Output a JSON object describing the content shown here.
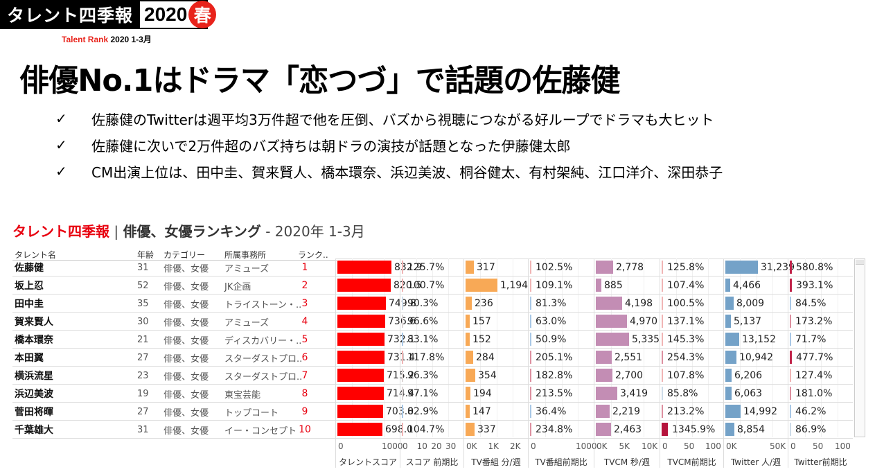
{
  "logo": {
    "title": "タレント四季報",
    "year": "2020",
    "season": "春",
    "sub_red": "Talent Rank",
    "sub_black": "2020 1-3月"
  },
  "headline": "俳優No.1はドラマ「恋つづ」で話題の佐藤健",
  "bullets": [
    {
      "icon": "check-icon",
      "mark": "✓",
      "text": "佐藤健のTwitterは週平均3万件超で他を圧倒、バズから視聴につながる好ループでドラマも大ヒット"
    },
    {
      "icon": "check-icon",
      "mark": "✓",
      "text": "佐藤健に次いで2万件超のバズ持ちは朝ドラの演技が話題となった伊藤健太郎"
    },
    {
      "icon": "check-icon",
      "mark": "✓",
      "text": "CM出演上位は、田中圭、賀来賢人、橋本環奈、浜辺美波、桐谷健太、有村架純、江口洋介、深田恭子"
    }
  ],
  "dashboard": {
    "title_red": "タレント四季報",
    "title_sep": " | ",
    "title_bold": "俳優、女優ランキング",
    "title_light": " - 2020年 1-3月",
    "columns": {
      "name": "タレント名",
      "age": "年齢",
      "category": "カテゴリー",
      "agency": "所属事務所",
      "rank": "ランク.."
    },
    "rows": [
      {
        "name": "佐藤健",
        "age": "31",
        "category": "俳優、女優",
        "agency": "アミューズ",
        "rank": "1"
      },
      {
        "name": "坂上忍",
        "age": "52",
        "category": "俳優、女優",
        "agency": "JK企画",
        "rank": "2"
      },
      {
        "name": "田中圭",
        "age": "35",
        "category": "俳優、女優",
        "agency": "トライストーン・..",
        "rank": "3"
      },
      {
        "name": "賀来賢人",
        "age": "30",
        "category": "俳優、女優",
        "agency": "アミューズ",
        "rank": "4"
      },
      {
        "name": "橋本環奈",
        "age": "21",
        "category": "俳優、女優",
        "agency": "ディスカバリー・..",
        "rank": "5"
      },
      {
        "name": "本田翼",
        "age": "27",
        "category": "俳優、女優",
        "agency": "スターダストプロ..",
        "rank": "6"
      },
      {
        "name": "横浜流星",
        "age": "23",
        "category": "俳優、女優",
        "agency": "スターダストプロ..",
        "rank": "7"
      },
      {
        "name": "浜辺美波",
        "age": "19",
        "category": "俳優、女優",
        "agency": "東宝芸能",
        "rank": "8"
      },
      {
        "name": "菅田将暉",
        "age": "27",
        "category": "俳優、女優",
        "agency": "トップコート",
        "rank": "9"
      },
      {
        "name": "千葉雄大",
        "age": "31",
        "category": "俳優、女優",
        "agency": "イー・コンセプト",
        "rank": "10"
      }
    ]
  },
  "chart_data": {
    "type": "bar",
    "title": "タレント四季報 | 俳優、女優ランキング - 2020年 1-3月",
    "categories": [
      "佐藤健",
      "坂上忍",
      "田中圭",
      "賀来賢人",
      "橋本環奈",
      "本田翼",
      "横浜流星",
      "浜辺美波",
      "菅田将暉",
      "千葉雄大"
    ],
    "series": [
      {
        "name": "タレントスコア",
        "color": "#ff0000",
        "axis_max": 1500,
        "ticks": [
          "0",
          "1000"
        ],
        "values": [
          832.9,
          820.6,
          749.8,
          736.6,
          732.1,
          731.4,
          715.2,
          714.4,
          703.0,
          698.0
        ],
        "labels": [
          "832.9",
          "820.6",
          "749.8",
          "736.6",
          "732.1",
          "731.4",
          "715.2",
          "714.4",
          "703.0",
          "698.0"
        ]
      },
      {
        "name": "スコア 前期比",
        "color": "diverging",
        "axis_max": 30,
        "ticks": [
          "0",
          "10",
          "20",
          "30"
        ],
        "values": [
          125.7,
          100.7,
          90.3,
          96.6,
          83.1,
          117.8,
          96.3,
          97.1,
          82.9,
          104.7
        ],
        "labels": [
          "125.7%",
          "100.7%",
          "90.3%",
          "96.6%",
          "83.1%",
          "117.8%",
          "96.3%",
          "97.1%",
          "82.9%",
          "104.7%"
        ]
      },
      {
        "name": "TV番組 分/週",
        "color": "#f8a956",
        "axis_max": 2200,
        "ticks": [
          "0K",
          "1K",
          "2K"
        ],
        "values": [
          317,
          1194,
          236,
          157,
          152,
          284,
          354,
          194,
          147,
          337
        ],
        "labels": [
          "317",
          "1,194",
          "236",
          "157",
          "152",
          "284",
          "354",
          "194",
          "147",
          "337"
        ]
      },
      {
        "name": "TV番組前期比",
        "color": "diverging",
        "axis_max": 1500,
        "ticks": [
          "0",
          "1000"
        ],
        "values": [
          102.5,
          109.1,
          81.3,
          63.0,
          50.9,
          205.1,
          182.8,
          213.5,
          36.4,
          234.8
        ],
        "labels": [
          "102.5%",
          "109.1%",
          "81.3%",
          "63.0%",
          "50.9%",
          "205.1%",
          "182.8%",
          "213.5%",
          "36.4%",
          "234.8%"
        ]
      },
      {
        "name": "TVCM 秒/週",
        "color": "#c38db4",
        "axis_max": 10000,
        "ticks": [
          "0K",
          "5K",
          "10K"
        ],
        "values": [
          2778,
          885,
          4198,
          4970,
          5335,
          2551,
          2700,
          3419,
          2219,
          2463
        ],
        "labels": [
          "2,778",
          "885",
          "4,198",
          "4,970",
          "5,335",
          "2,551",
          "2,700",
          "3,419",
          "2,219",
          "2,463"
        ]
      },
      {
        "name": "TVCM前期比",
        "color": "diverging",
        "axis_max": 200,
        "ticks": [
          "0",
          "50",
          "100"
        ],
        "values": [
          125.8,
          107.4,
          100.5,
          137.1,
          145.3,
          254.3,
          107.8,
          85.8,
          213.2,
          1345.9
        ],
        "labels": [
          "125.8%",
          "107.4%",
          "100.5%",
          "137.1%",
          "145.3%",
          "254.3%",
          "107.8%",
          "85.8%",
          "213.2%",
          "1345.9%"
        ]
      },
      {
        "name": "Twitter 人/週",
        "color": "#74a2c8",
        "axis_max": 60000,
        "ticks": [
          "0K",
          "50K"
        ],
        "values": [
          31239,
          4466,
          8009,
          5137,
          13152,
          10942,
          6206,
          6063,
          14992,
          8854
        ],
        "labels": [
          "31,239",
          "4,466",
          "8,009",
          "5,137",
          "13,152",
          "10,942",
          "6,206",
          "6,063",
          "14,992",
          "8,854"
        ]
      },
      {
        "name": "Twitter前期比",
        "color": "diverging",
        "axis_max": 300,
        "ticks": [
          "0",
          "50",
          "100"
        ],
        "values": [
          580.8,
          393.1,
          84.5,
          173.2,
          71.7,
          477.7,
          127.4,
          181.0,
          46.2,
          86.9
        ],
        "labels": [
          "580.8%",
          "393.1%",
          "84.5%",
          "173.2%",
          "71.7%",
          "477.7%",
          "127.4%",
          "181.0%",
          "46.2%",
          "86.9%"
        ]
      }
    ],
    "xlabel": "",
    "ylabel": "",
    "grid": true,
    "legend": "none"
  }
}
